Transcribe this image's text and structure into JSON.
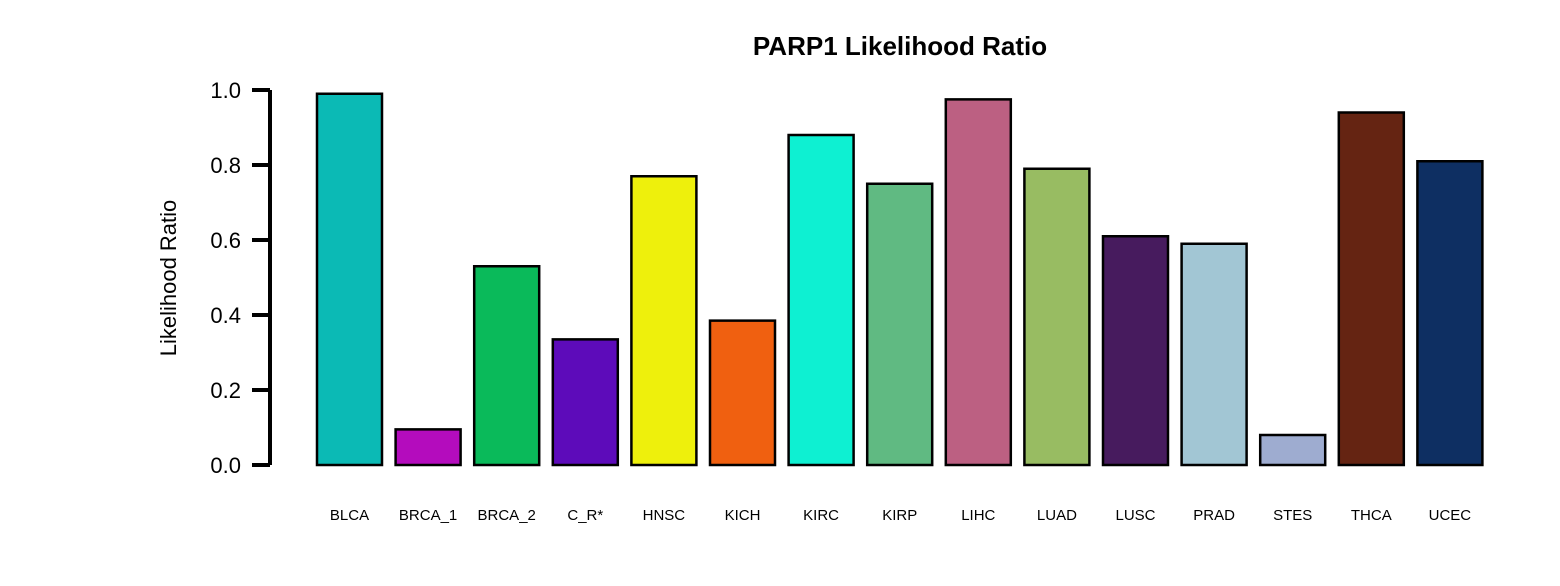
{
  "chart_data": {
    "type": "bar",
    "title": "PARP1 Likelihood Ratio",
    "xlabel": "",
    "ylabel": "Likelihood Ratio",
    "ylim": [
      0,
      1.0
    ],
    "yticks": [
      "0.0",
      "0.2",
      "0.4",
      "0.6",
      "0.8",
      "1.0"
    ],
    "categories": [
      "BLCA",
      "BRCA_1",
      "BRCA_2",
      "C_R*",
      "HNSC",
      "KICH",
      "KIRC",
      "KIRP",
      "LIHC",
      "LUAD",
      "LUSC",
      "PRAD",
      "STES",
      "THCA",
      "UCEC"
    ],
    "values": [
      0.99,
      0.095,
      0.53,
      0.335,
      0.77,
      0.385,
      0.88,
      0.75,
      0.975,
      0.79,
      0.61,
      0.59,
      0.08,
      0.94,
      0.81
    ],
    "colors": [
      "#0bbab5",
      "#b40cbd",
      "#0aba5a",
      "#5d0bba",
      "#eef00c",
      "#f06010",
      "#0ef0d2",
      "#60ba82",
      "#bc6082",
      "#98bc62",
      "#471b5e",
      "#a2c6d4",
      "#9eacd0",
      "#652412",
      "#0e2f62"
    ],
    "grid": false,
    "legend": "none"
  }
}
